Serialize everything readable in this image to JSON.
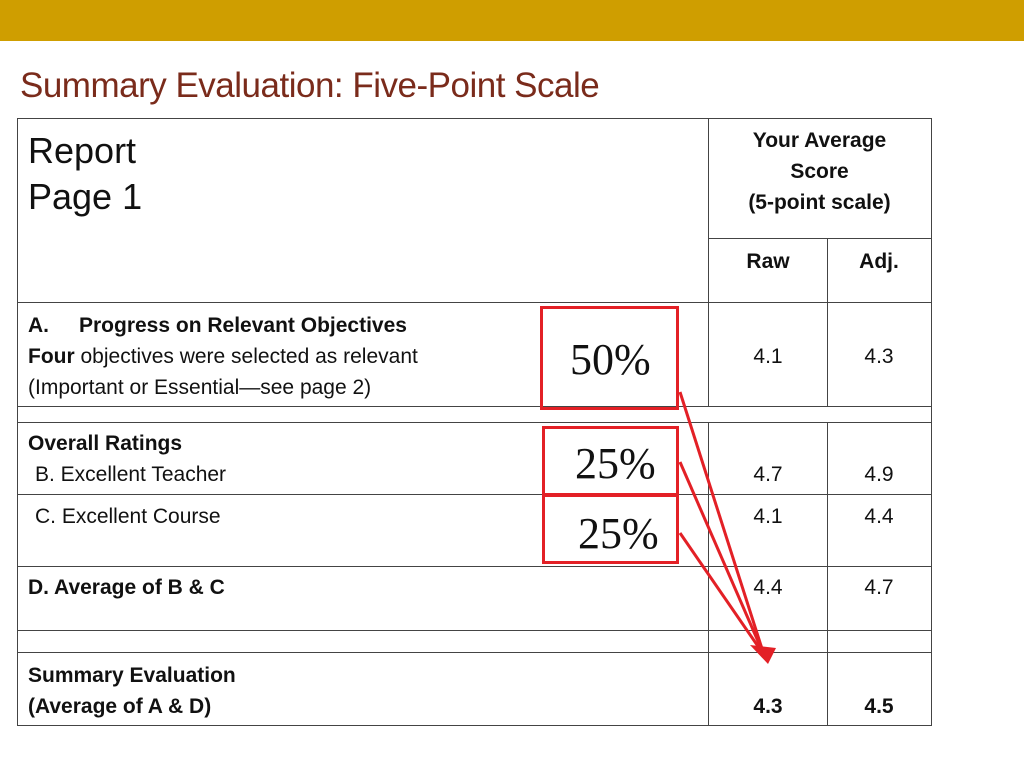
{
  "title": "Summary Evaluation: Five-Point Scale",
  "colors": {
    "topbar": "#cf9e00",
    "title": "#7a2b1b",
    "highlight": "#e32026"
  },
  "header": {
    "report_line1": "Report",
    "report_line2": "Page 1",
    "score_header_line1": "Your Average",
    "score_header_line2": "Score",
    "score_header_line3": "(5-point scale)",
    "col_raw": "Raw",
    "col_adj": "Adj."
  },
  "rows": {
    "a": {
      "label_prefix": "A.",
      "label": "Progress on Relevant Objectives",
      "line2_bold": "Four",
      "line2_rest": " objectives were selected as relevant",
      "line3": "(Important or Essential—see page 2)",
      "raw": "4.1",
      "adj": "4.3",
      "weight": "50%"
    },
    "overall": {
      "heading": "Overall Ratings",
      "label": "B. Excellent Teacher",
      "raw": "4.7",
      "adj": "4.9",
      "weight": "25%"
    },
    "c": {
      "label": "C. Excellent Course",
      "raw": "4.1",
      "adj": "4.4",
      "weight": "25%"
    },
    "d": {
      "label": "D. Average of B & C",
      "raw": "4.4",
      "adj": "4.7"
    },
    "summary": {
      "line1": "Summary Evaluation",
      "line2": "(Average of A & D)",
      "raw": "4.3",
      "adj": "4.5"
    }
  }
}
